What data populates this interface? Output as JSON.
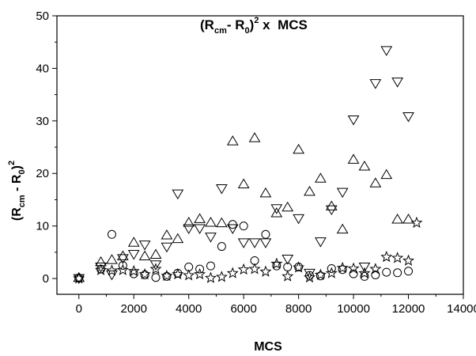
{
  "chart_data": {
    "type": "scatter",
    "title": {
      "open": "(R",
      "sub1": "cm",
      "mid": "- R",
      "sub2": "0",
      "close": ")",
      "sup": "2",
      "tail": " x  MCS"
    },
    "xlabel": "MCS",
    "ylabel": {
      "open": "(R",
      "sub1": "cm",
      "mid": " - R",
      "sub2": "0",
      "close": ")",
      "sup": "2"
    },
    "xlim": [
      -800,
      14000
    ],
    "ylim": [
      -3,
      50
    ],
    "xticks": [
      0,
      2000,
      4000,
      6000,
      8000,
      10000,
      12000,
      14000
    ],
    "yticks": [
      0,
      10,
      20,
      30,
      40,
      50
    ],
    "grid": false,
    "series": [
      {
        "marker": "triangle-up",
        "x": [
          0,
          800,
          1200,
          1600,
          2000,
          2400,
          2800,
          3200,
          3600,
          4000,
          4400,
          4800,
          5200,
          5600,
          6000,
          6400,
          6800,
          7200,
          7600,
          8000,
          8400,
          8800,
          9200,
          9600,
          10000,
          10400,
          10800,
          11200,
          11600,
          12000
        ],
        "y": [
          0.2,
          3.2,
          3.6,
          4.3,
          6.9,
          4.3,
          4.6,
          8.3,
          7.6,
          10.7,
          11.4,
          10.7,
          10.6,
          26.2,
          18.0,
          26.8,
          16.3,
          12.5,
          13.6,
          24.6,
          16.6,
          19.1,
          13.8,
          9.4,
          22.7,
          21.4,
          18.2,
          19.8,
          11.3,
          11.3
        ]
      },
      {
        "marker": "triangle-down",
        "x": [
          0,
          800,
          1200,
          1600,
          2000,
          2400,
          2800,
          3200,
          3600,
          4000,
          4400,
          4800,
          5200,
          5600,
          6000,
          6400,
          6800,
          7200,
          7600,
          8000,
          8400,
          8800,
          9200,
          9600,
          10000,
          10400,
          10800,
          11200,
          11600,
          12000
        ],
        "y": [
          0.0,
          2.2,
          0.7,
          3.8,
          4.6,
          6.4,
          2.6,
          6.0,
          16.1,
          9.5,
          9.5,
          7.9,
          17.1,
          9.5,
          6.8,
          6.8,
          6.8,
          13.3,
          3.7,
          11.4,
          1.0,
          7.0,
          13.1,
          16.4,
          30.2,
          2.2,
          37.1,
          43.4,
          37.4,
          30.8
        ]
      },
      {
        "marker": "circle",
        "x": [
          0,
          800,
          1200,
          1600,
          2000,
          2400,
          2800,
          3200,
          3600,
          4000,
          4400,
          4800,
          5200,
          5600,
          6000,
          6400,
          6800,
          7200,
          7600,
          8000,
          8400,
          8800,
          9200,
          9600,
          10000,
          10400,
          10800,
          11200,
          11600,
          12000
        ],
        "y": [
          0.1,
          1.8,
          8.4,
          2.5,
          0.9,
          0.7,
          0.2,
          0.4,
          1.0,
          2.2,
          1.8,
          2.4,
          6.1,
          10.3,
          10.0,
          3.4,
          8.4,
          2.4,
          2.2,
          2.2,
          0.6,
          0.5,
          1.9,
          1.7,
          0.9,
          0.4,
          0.7,
          1.2,
          1.1,
          1.4
        ]
      },
      {
        "marker": "star",
        "x": [
          0,
          800,
          1200,
          1600,
          2000,
          2400,
          2800,
          3200,
          3600,
          4000,
          4400,
          4800,
          5200,
          5600,
          6000,
          6400,
          6800,
          7200,
          7600,
          8000,
          8400,
          8800,
          9200,
          9600,
          10000,
          10400,
          10800,
          11200,
          11600,
          12000,
          12300
        ],
        "y": [
          0.0,
          1.6,
          1.5,
          1.6,
          1.4,
          0.8,
          1.8,
          0.5,
          0.8,
          0.6,
          0.8,
          0.1,
          0.3,
          1.0,
          1.7,
          1.8,
          1.3,
          2.8,
          0.4,
          2.1,
          0.2,
          0.7,
          1.0,
          2.0,
          1.9,
          1.0,
          1.8,
          4.1,
          3.9,
          3.4,
          10.6
        ]
      }
    ]
  }
}
